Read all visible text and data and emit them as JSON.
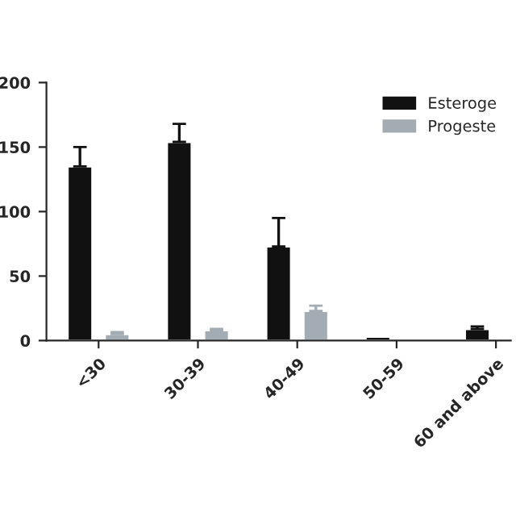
{
  "chart_data": {
    "type": "bar",
    "categories": [
      "<30",
      "30-39",
      "40-49",
      "50-59",
      "60 and above"
    ],
    "series": [
      {
        "name": "Esteroge",
        "color": "#111111",
        "values": [
          135,
          154,
          73,
          3,
          9
        ],
        "errors": [
          15,
          14,
          22,
          null,
          2
        ]
      },
      {
        "name": "Progeste",
        "color": "#a3acb3",
        "values": [
          5,
          8,
          23,
          null,
          null
        ],
        "errors": [
          1.5,
          1,
          4,
          null,
          null
        ]
      }
    ],
    "ylim": [
      0,
      200
    ],
    "yticks": [
      0,
      50,
      100,
      150,
      200
    ],
    "grid": false,
    "legend": "top right"
  }
}
